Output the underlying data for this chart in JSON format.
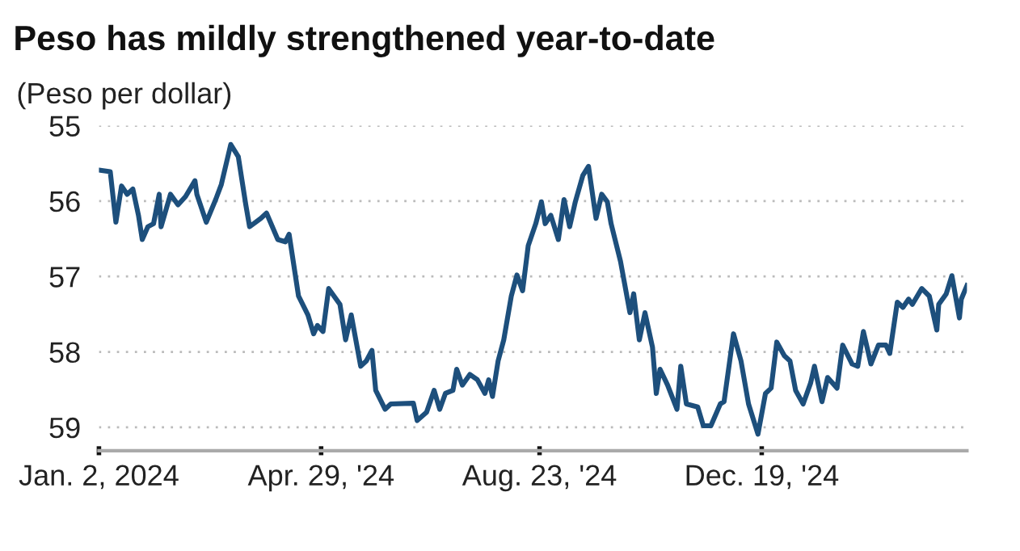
{
  "chart_data": {
    "type": "line",
    "title": "Peso has mildly strengthened year-to-date",
    "ylabel": "(Peso per dollar)",
    "x": [
      "2024-01-02",
      "2024-01-08",
      "2024-01-11",
      "2024-01-14",
      "2024-01-17",
      "2024-01-20",
      "2024-01-23",
      "2024-01-25",
      "2024-01-28",
      "2024-01-31",
      "2024-02-03",
      "2024-02-04",
      "2024-02-09",
      "2024-02-13",
      "2024-02-17",
      "2024-02-22",
      "2024-02-23",
      "2024-02-28",
      "2024-03-04",
      "2024-03-07",
      "2024-03-12",
      "2024-03-16",
      "2024-03-20",
      "2024-03-22",
      "2024-03-28",
      "2024-03-31",
      "2024-04-06",
      "2024-04-10",
      "2024-04-12",
      "2024-04-17",
      "2024-04-22",
      "2024-04-25",
      "2024-04-27",
      "2024-04-30",
      "2024-05-03",
      "2024-05-09",
      "2024-05-12",
      "2024-05-15",
      "2024-05-20",
      "2024-05-23",
      "2024-05-26",
      "2024-05-28",
      "2024-06-02",
      "2024-06-05",
      "2024-06-17",
      "2024-06-19",
      "2024-06-24",
      "2024-06-28",
      "2024-07-01",
      "2024-07-04",
      "2024-07-08",
      "2024-07-10",
      "2024-07-13",
      "2024-07-17",
      "2024-07-21",
      "2024-07-25",
      "2024-07-27",
      "2024-07-29",
      "2024-08-01",
      "2024-08-04",
      "2024-08-08",
      "2024-08-11",
      "2024-08-14",
      "2024-08-17",
      "2024-08-21",
      "2024-08-24",
      "2024-08-26",
      "2024-08-29",
      "2024-09-02",
      "2024-09-05",
      "2024-09-08",
      "2024-09-11",
      "2024-09-15",
      "2024-09-18",
      "2024-09-22",
      "2024-09-25",
      "2024-09-28",
      "2024-09-30",
      "2024-10-05",
      "2024-10-10",
      "2024-10-12",
      "2024-10-15",
      "2024-10-18",
      "2024-10-22",
      "2024-10-24",
      "2024-10-26",
      "2024-10-30",
      "2024-11-04",
      "2024-11-06",
      "2024-11-09",
      "2024-11-15",
      "2024-11-18",
      "2024-11-22",
      "2024-11-27",
      "2024-11-29",
      "2024-12-04",
      "2024-12-08",
      "2024-12-12",
      "2024-12-17",
      "2024-12-21",
      "2024-12-24",
      "2024-12-27",
      "2024-12-31",
      "2025-01-03",
      "2025-01-06",
      "2025-01-10",
      "2025-01-14",
      "2025-01-16",
      "2025-01-20",
      "2025-01-23",
      "2025-01-28",
      "2025-01-31",
      "2025-02-05",
      "2025-02-08",
      "2025-02-11",
      "2025-02-15",
      "2025-02-19",
      "2025-02-23",
      "2025-02-25",
      "2025-03-01",
      "2025-03-04",
      "2025-03-07",
      "2025-03-09",
      "2025-03-14",
      "2025-03-18",
      "2025-03-22",
      "2025-03-23",
      "2025-03-27",
      "2025-03-30",
      "2025-04-03",
      "2025-04-04",
      "2025-04-07"
    ],
    "series": [
      {
        "color": "#1d4f7c",
        "values": [
          55.59,
          55.61,
          56.28,
          55.8,
          55.91,
          55.84,
          56.19,
          56.51,
          56.34,
          56.3,
          55.91,
          56.34,
          55.91,
          56.05,
          55.94,
          55.73,
          55.91,
          56.28,
          55.98,
          55.78,
          55.25,
          55.41,
          56.05,
          56.34,
          56.23,
          56.16,
          56.51,
          56.54,
          56.44,
          57.26,
          57.51,
          57.76,
          57.65,
          57.73,
          57.16,
          57.37,
          57.84,
          57.51,
          58.19,
          58.12,
          57.98,
          58.51,
          58.76,
          58.69,
          58.68,
          58.91,
          58.8,
          58.51,
          58.76,
          58.55,
          58.51,
          58.23,
          58.44,
          58.3,
          58.37,
          58.55,
          58.37,
          58.59,
          58.12,
          57.84,
          57.26,
          56.98,
          57.19,
          56.59,
          56.3,
          56.01,
          56.3,
          56.19,
          56.51,
          55.98,
          56.34,
          56.01,
          55.66,
          55.54,
          56.23,
          55.91,
          56.01,
          56.3,
          56.8,
          57.48,
          57.23,
          57.84,
          57.48,
          57.94,
          58.55,
          58.23,
          58.44,
          58.76,
          58.19,
          58.69,
          58.73,
          58.98,
          58.98,
          58.69,
          58.66,
          57.76,
          58.12,
          58.69,
          59.09,
          58.55,
          58.48,
          57.87,
          58.05,
          58.12,
          58.51,
          58.69,
          58.41,
          58.19,
          58.66,
          58.34,
          58.48,
          57.91,
          58.16,
          58.19,
          57.73,
          58.16,
          57.91,
          57.91,
          58.02,
          57.34,
          57.41,
          57.3,
          57.37,
          57.16,
          57.26,
          57.71,
          57.37,
          57.23,
          56.99,
          57.55,
          57.3,
          57.12
        ]
      }
    ],
    "xlim": [
      "2024-01-02",
      "2025-04-07"
    ],
    "ylim": [
      59.31,
      55
    ],
    "xticks": [
      {
        "value": "2024-01-02",
        "label": "Jan. 2, 2024"
      },
      {
        "value": "2024-04-29",
        "label": "Apr. 29, '24"
      },
      {
        "value": "2024-08-23",
        "label": "Aug. 23, '24"
      },
      {
        "value": "2024-12-19",
        "label": "Dec. 19, '24"
      }
    ],
    "yticks": [
      55,
      56,
      57,
      58,
      59
    ],
    "grid": "y",
    "legend": false,
    "marker": "none",
    "line_style": "solid"
  }
}
